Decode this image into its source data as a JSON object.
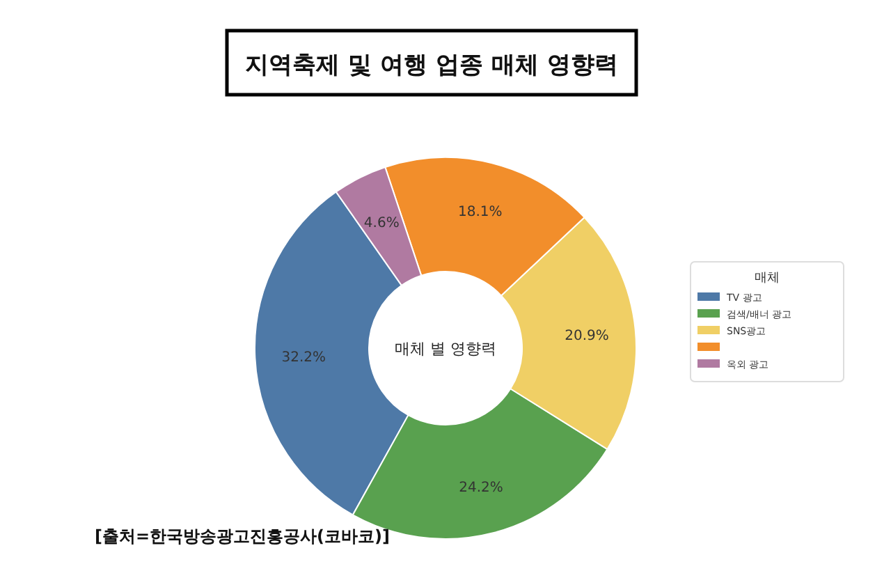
{
  "chart_data": {
    "type": "donut",
    "title": "지역축제 및 여행 업종 매체 영향력",
    "legend_title": "매체",
    "legend": "right",
    "value_labels": [
      "32.2%",
      "24.2%",
      "20.9%",
      "18.1%",
      "4.6%"
    ],
    "categories": [
      "TV 광고",
      "검색/배너 광고",
      "SNS광고",
      null,
      "옥외 광고"
    ],
    "values": [
      32.2,
      24.2,
      20.9,
      18.1,
      4.6
    ],
    "colors": [
      "#4e79a7",
      "#59a14f",
      "#f0cf65",
      "#f28e2b",
      "#b07aa1"
    ],
    "annotations": [
      "매체 별 영향력",
      "[출처=한국방송광고진흥공사(코바코)]"
    ]
  }
}
